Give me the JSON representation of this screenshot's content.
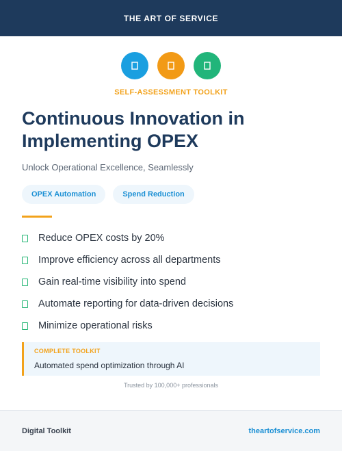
{
  "header": {
    "brand": "THE ART OF SERVICE"
  },
  "icons": [
    {
      "name": "chart-icon",
      "color": "#1a9fe0"
    },
    {
      "name": "lightbulb-icon",
      "color": "#f29a16"
    },
    {
      "name": "gear-icon",
      "color": "#21b57a"
    }
  ],
  "hero": {
    "kicker": "SELF-ASSESSMENT TOOLKIT",
    "title": "Continuous Innovation in Implementing OPEX",
    "subtitle": "Unlock Operational Excellence, Seamlessly"
  },
  "tags": [
    "OPEX Automation",
    "Spend Reduction"
  ],
  "bullets": [
    "Reduce OPEX costs by 20%",
    "Improve efficiency across all departments",
    "Gain real-time visibility into spend",
    "Automate reporting for data-driven decisions",
    "Minimize operational risks"
  ],
  "callout": {
    "kicker": "COMPLETE TOOLKIT",
    "text": "Automated spend optimization through AI"
  },
  "trusted": "Trusted by 100,000+ professionals",
  "footer": {
    "left": "Digital Toolkit",
    "right": "theartofservice.com"
  },
  "colors": {
    "navy": "#1e3a5c",
    "accent_orange": "#f2a21b",
    "accent_blue": "#1a8fd4",
    "accent_green": "#22b573"
  }
}
